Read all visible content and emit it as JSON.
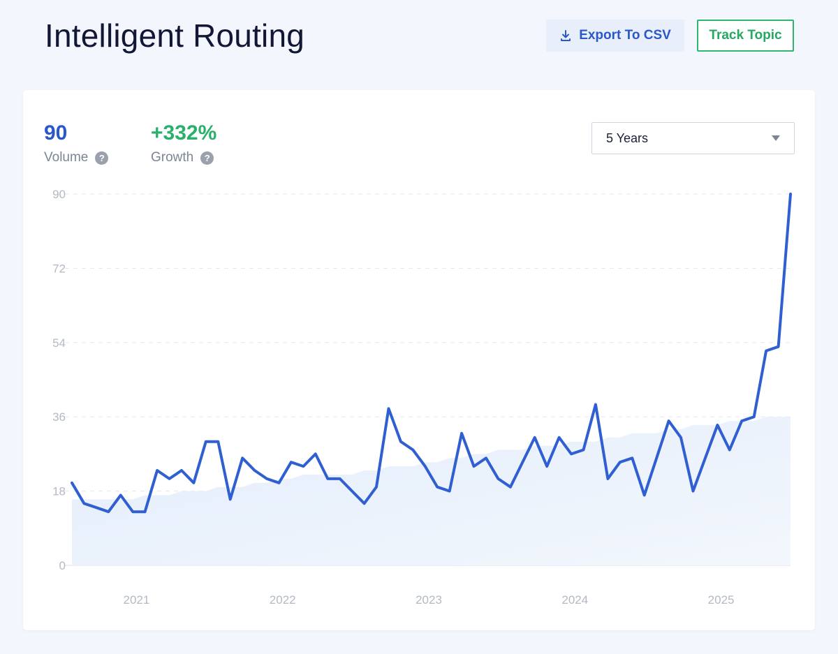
{
  "header": {
    "title": "Intelligent Routing",
    "export_label": "Export To CSV",
    "track_label": "Track Topic"
  },
  "metrics": {
    "volume": {
      "value": "90",
      "label": "Volume"
    },
    "growth": {
      "value": "+332%",
      "label": "Growth"
    },
    "help_glyph": "?"
  },
  "range_select": {
    "value": "5 Years"
  },
  "icons": {
    "export": "download-icon",
    "help": "help-icon",
    "select": "caret-down-icon"
  },
  "colors": {
    "line": "#2f5fd0",
    "trend_fill": "#e6effb",
    "volume": "#2a57c9",
    "growth": "#29b06a",
    "track_border": "#2fb56d"
  },
  "chart_data": {
    "type": "line",
    "title": "",
    "xlabel": "",
    "ylabel": "",
    "ylim": [
      0,
      90
    ],
    "y_ticks": [
      "0",
      "18",
      "36",
      "54",
      "72",
      "90"
    ],
    "x_ticks": [
      "2021",
      "2022",
      "2023",
      "2024",
      "2025"
    ],
    "grid": "horizontal-dashed",
    "x_start": "2020-09",
    "x_end": "2025-08",
    "series": [
      {
        "values": [
          20,
          15,
          14,
          13,
          17,
          13,
          13,
          23,
          21,
          23,
          20,
          30,
          30,
          16,
          26,
          23,
          21,
          20,
          25,
          24,
          27,
          21,
          21,
          18,
          15,
          19,
          38,
          30,
          28,
          24,
          19,
          18,
          32,
          24,
          26,
          21,
          19,
          25,
          31,
          24,
          31,
          27,
          28,
          39,
          21,
          25,
          26,
          17,
          26,
          35,
          31,
          18,
          26,
          34,
          28,
          35,
          36,
          52,
          53,
          90
        ]
      },
      {
        "values": [
          16,
          16,
          16,
          16,
          16,
          16,
          17,
          17,
          17,
          18,
          18,
          18,
          19,
          19,
          19,
          20,
          20,
          21,
          21,
          22,
          22,
          22,
          22,
          22,
          23,
          23,
          24,
          24,
          24,
          25,
          25,
          26,
          26,
          27,
          27,
          28,
          28,
          28,
          29,
          29,
          29,
          30,
          30,
          30,
          31,
          31,
          32,
          32,
          32,
          33,
          33,
          34,
          34,
          34,
          35,
          35,
          35,
          36,
          36,
          36
        ]
      }
    ]
  }
}
